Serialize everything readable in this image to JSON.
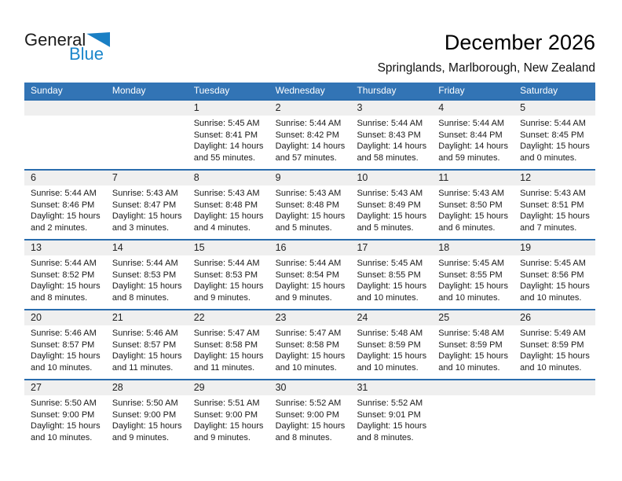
{
  "logo": {
    "general": "General",
    "blue": "Blue"
  },
  "header": {
    "title": "December 2026",
    "subtitle": "Springlands, Marlborough, New Zealand"
  },
  "colors": {
    "header_band_blue": "#3274b5",
    "week_divider_blue": "#2a6dae",
    "day_number_strip_gray": "#efefef",
    "logo_blue": "#1a86cb"
  },
  "calendar": {
    "weekdays": [
      "Sunday",
      "Monday",
      "Tuesday",
      "Wednesday",
      "Thursday",
      "Friday",
      "Saturday"
    ],
    "weeks": [
      [
        null,
        null,
        {
          "day": "1",
          "sunrise": "Sunrise: 5:45 AM",
          "sunset": "Sunset: 8:41 PM",
          "daylight1": "Daylight: 14 hours",
          "daylight2": "and 55 minutes."
        },
        {
          "day": "2",
          "sunrise": "Sunrise: 5:44 AM",
          "sunset": "Sunset: 8:42 PM",
          "daylight1": "Daylight: 14 hours",
          "daylight2": "and 57 minutes."
        },
        {
          "day": "3",
          "sunrise": "Sunrise: 5:44 AM",
          "sunset": "Sunset: 8:43 PM",
          "daylight1": "Daylight: 14 hours",
          "daylight2": "and 58 minutes."
        },
        {
          "day": "4",
          "sunrise": "Sunrise: 5:44 AM",
          "sunset": "Sunset: 8:44 PM",
          "daylight1": "Daylight: 14 hours",
          "daylight2": "and 59 minutes."
        },
        {
          "day": "5",
          "sunrise": "Sunrise: 5:44 AM",
          "sunset": "Sunset: 8:45 PM",
          "daylight1": "Daylight: 15 hours",
          "daylight2": "and 0 minutes."
        }
      ],
      [
        {
          "day": "6",
          "sunrise": "Sunrise: 5:44 AM",
          "sunset": "Sunset: 8:46 PM",
          "daylight1": "Daylight: 15 hours",
          "daylight2": "and 2 minutes."
        },
        {
          "day": "7",
          "sunrise": "Sunrise: 5:43 AM",
          "sunset": "Sunset: 8:47 PM",
          "daylight1": "Daylight: 15 hours",
          "daylight2": "and 3 minutes."
        },
        {
          "day": "8",
          "sunrise": "Sunrise: 5:43 AM",
          "sunset": "Sunset: 8:48 PM",
          "daylight1": "Daylight: 15 hours",
          "daylight2": "and 4 minutes."
        },
        {
          "day": "9",
          "sunrise": "Sunrise: 5:43 AM",
          "sunset": "Sunset: 8:48 PM",
          "daylight1": "Daylight: 15 hours",
          "daylight2": "and 5 minutes."
        },
        {
          "day": "10",
          "sunrise": "Sunrise: 5:43 AM",
          "sunset": "Sunset: 8:49 PM",
          "daylight1": "Daylight: 15 hours",
          "daylight2": "and 5 minutes."
        },
        {
          "day": "11",
          "sunrise": "Sunrise: 5:43 AM",
          "sunset": "Sunset: 8:50 PM",
          "daylight1": "Daylight: 15 hours",
          "daylight2": "and 6 minutes."
        },
        {
          "day": "12",
          "sunrise": "Sunrise: 5:43 AM",
          "sunset": "Sunset: 8:51 PM",
          "daylight1": "Daylight: 15 hours",
          "daylight2": "and 7 minutes."
        }
      ],
      [
        {
          "day": "13",
          "sunrise": "Sunrise: 5:44 AM",
          "sunset": "Sunset: 8:52 PM",
          "daylight1": "Daylight: 15 hours",
          "daylight2": "and 8 minutes."
        },
        {
          "day": "14",
          "sunrise": "Sunrise: 5:44 AM",
          "sunset": "Sunset: 8:53 PM",
          "daylight1": "Daylight: 15 hours",
          "daylight2": "and 8 minutes."
        },
        {
          "day": "15",
          "sunrise": "Sunrise: 5:44 AM",
          "sunset": "Sunset: 8:53 PM",
          "daylight1": "Daylight: 15 hours",
          "daylight2": "and 9 minutes."
        },
        {
          "day": "16",
          "sunrise": "Sunrise: 5:44 AM",
          "sunset": "Sunset: 8:54 PM",
          "daylight1": "Daylight: 15 hours",
          "daylight2": "and 9 minutes."
        },
        {
          "day": "17",
          "sunrise": "Sunrise: 5:45 AM",
          "sunset": "Sunset: 8:55 PM",
          "daylight1": "Daylight: 15 hours",
          "daylight2": "and 10 minutes."
        },
        {
          "day": "18",
          "sunrise": "Sunrise: 5:45 AM",
          "sunset": "Sunset: 8:55 PM",
          "daylight1": "Daylight: 15 hours",
          "daylight2": "and 10 minutes."
        },
        {
          "day": "19",
          "sunrise": "Sunrise: 5:45 AM",
          "sunset": "Sunset: 8:56 PM",
          "daylight1": "Daylight: 15 hours",
          "daylight2": "and 10 minutes."
        }
      ],
      [
        {
          "day": "20",
          "sunrise": "Sunrise: 5:46 AM",
          "sunset": "Sunset: 8:57 PM",
          "daylight1": "Daylight: 15 hours",
          "daylight2": "and 10 minutes."
        },
        {
          "day": "21",
          "sunrise": "Sunrise: 5:46 AM",
          "sunset": "Sunset: 8:57 PM",
          "daylight1": "Daylight: 15 hours",
          "daylight2": "and 11 minutes."
        },
        {
          "day": "22",
          "sunrise": "Sunrise: 5:47 AM",
          "sunset": "Sunset: 8:58 PM",
          "daylight1": "Daylight: 15 hours",
          "daylight2": "and 11 minutes."
        },
        {
          "day": "23",
          "sunrise": "Sunrise: 5:47 AM",
          "sunset": "Sunset: 8:58 PM",
          "daylight1": "Daylight: 15 hours",
          "daylight2": "and 10 minutes."
        },
        {
          "day": "24",
          "sunrise": "Sunrise: 5:48 AM",
          "sunset": "Sunset: 8:59 PM",
          "daylight1": "Daylight: 15 hours",
          "daylight2": "and 10 minutes."
        },
        {
          "day": "25",
          "sunrise": "Sunrise: 5:48 AM",
          "sunset": "Sunset: 8:59 PM",
          "daylight1": "Daylight: 15 hours",
          "daylight2": "and 10 minutes."
        },
        {
          "day": "26",
          "sunrise": "Sunrise: 5:49 AM",
          "sunset": "Sunset: 8:59 PM",
          "daylight1": "Daylight: 15 hours",
          "daylight2": "and 10 minutes."
        }
      ],
      [
        {
          "day": "27",
          "sunrise": "Sunrise: 5:50 AM",
          "sunset": "Sunset: 9:00 PM",
          "daylight1": "Daylight: 15 hours",
          "daylight2": "and 10 minutes."
        },
        {
          "day": "28",
          "sunrise": "Sunrise: 5:50 AM",
          "sunset": "Sunset: 9:00 PM",
          "daylight1": "Daylight: 15 hours",
          "daylight2": "and 9 minutes."
        },
        {
          "day": "29",
          "sunrise": "Sunrise: 5:51 AM",
          "sunset": "Sunset: 9:00 PM",
          "daylight1": "Daylight: 15 hours",
          "daylight2": "and 9 minutes."
        },
        {
          "day": "30",
          "sunrise": "Sunrise: 5:52 AM",
          "sunset": "Sunset: 9:00 PM",
          "daylight1": "Daylight: 15 hours",
          "daylight2": "and 8 minutes."
        },
        {
          "day": "31",
          "sunrise": "Sunrise: 5:52 AM",
          "sunset": "Sunset: 9:01 PM",
          "daylight1": "Daylight: 15 hours",
          "daylight2": "and 8 minutes."
        },
        null,
        null
      ]
    ]
  }
}
